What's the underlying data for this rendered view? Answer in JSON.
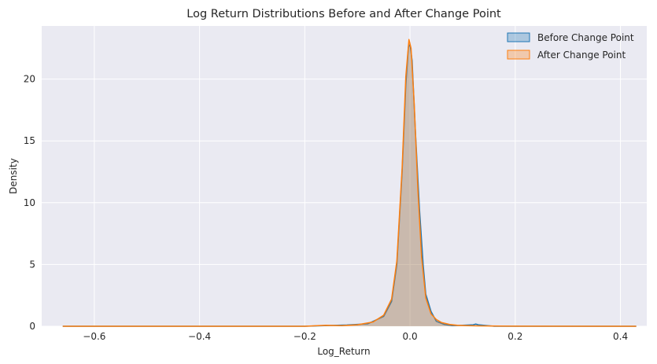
{
  "chart_data": {
    "type": "area",
    "title": "Log Return Distributions Before and After Change Point",
    "xlabel": "Log_Return",
    "ylabel": "Density",
    "xlim": [
      -0.7,
      0.45
    ],
    "ylim": [
      0,
      24.3
    ],
    "xticks": [
      -0.6,
      -0.4,
      -0.2,
      0.0,
      0.2,
      0.4
    ],
    "xtick_labels": [
      "−0.6",
      "−0.4",
      "−0.2",
      "0.0",
      "0.2",
      "0.4"
    ],
    "yticks": [
      0,
      5,
      10,
      15,
      20
    ],
    "ytick_labels": [
      "0",
      "5",
      "10",
      "15",
      "20"
    ],
    "grid": true,
    "legend_position": "top-right",
    "series": [
      {
        "name": "Before Change Point",
        "color": "#1f77b4",
        "x": [
          -0.66,
          -0.2,
          -0.12,
          -0.08,
          -0.05,
          -0.035,
          -0.025,
          -0.015,
          -0.008,
          -0.003,
          0.0,
          0.004,
          0.01,
          0.018,
          0.025,
          0.03,
          0.04,
          0.05,
          0.065,
          0.08,
          0.1,
          0.12,
          0.125,
          0.13,
          0.16,
          0.43
        ],
        "y": [
          0,
          0,
          0.1,
          0.2,
          0.8,
          2.0,
          5.0,
          12.5,
          19.5,
          22.6,
          22.8,
          21.5,
          16.0,
          9.5,
          5.0,
          2.6,
          1.2,
          0.4,
          0.15,
          0.05,
          0.08,
          0.12,
          0.18,
          0.12,
          0,
          0
        ]
      },
      {
        "name": "After Change Point",
        "color": "#ff7f0e",
        "x": [
          -0.66,
          -0.2,
          -0.16,
          -0.13,
          -0.1,
          -0.07,
          -0.05,
          -0.035,
          -0.025,
          -0.015,
          -0.008,
          -0.002,
          0.002,
          0.008,
          0.015,
          0.022,
          0.03,
          0.04,
          0.05,
          0.06,
          0.075,
          0.09,
          0.11,
          0.13,
          0.2,
          0.43
        ],
        "y": [
          0,
          0,
          0.08,
          0.05,
          0.12,
          0.35,
          0.9,
          2.2,
          5.3,
          12.8,
          20.2,
          23.2,
          22.5,
          18.0,
          11.0,
          5.6,
          2.3,
          1.0,
          0.55,
          0.3,
          0.15,
          0.08,
          0.05,
          0.03,
          0.01,
          0
        ]
      }
    ]
  }
}
